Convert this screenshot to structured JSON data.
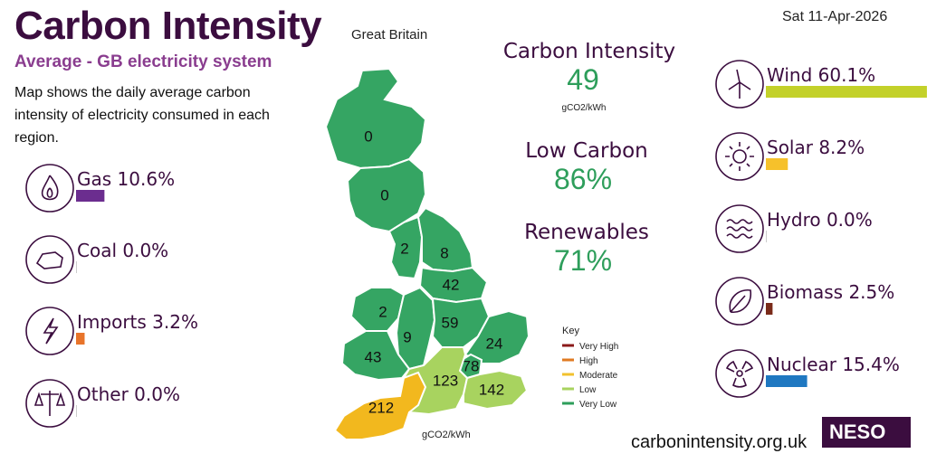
{
  "header": {
    "title": "Carbon Intensity",
    "region": "Great Britain",
    "date": "Sat 11-Apr-2026",
    "subtitle": "Average - GB electricity system",
    "description": "Map shows the daily average carbon intensity of electricity consumed in each region."
  },
  "stats": [
    {
      "label": "Carbon Intensity",
      "value": 49,
      "unit": "gCO2/kWh"
    },
    {
      "label": "Low Carbon",
      "value": "86%"
    },
    {
      "label": "Renewables",
      "value": "71%"
    }
  ],
  "fuels": [
    {
      "label": "Gas 10.6%",
      "value": 10.6,
      "color": "#6b2d8f",
      "icon": "gas"
    },
    {
      "label": "Coal 0.0%",
      "value": 0.0,
      "color": "#3b0d3f",
      "icon": "coal"
    },
    {
      "label": "Imports 3.2%",
      "value": 3.2,
      "color": "#e8742a",
      "icon": "imports"
    },
    {
      "label": "Other 0.0%",
      "value": 0.0,
      "color": "#999999",
      "icon": "other"
    },
    {
      "label": "Wind 60.1%",
      "value": 60.1,
      "color": "#c3d12a",
      "icon": "wind"
    },
    {
      "label": "Solar 8.2%",
      "value": 8.2,
      "color": "#f6c12b",
      "icon": "solar"
    },
    {
      "label": "Hydro 0.0%",
      "value": 0.0,
      "color": "#4aa3df",
      "icon": "hydro"
    },
    {
      "label": "Biomass 2.5%",
      "value": 2.5,
      "color": "#7a2b1a",
      "icon": "biomass"
    },
    {
      "label": "Nuclear 15.4%",
      "value": 15.4,
      "color": "#1f78c1",
      "icon": "nuclear"
    }
  ],
  "map": {
    "unit": "gCO2/kWh",
    "key_title": "Key",
    "key": [
      {
        "label": "Very High",
        "color": "#8b1a1a"
      },
      {
        "label": "High",
        "color": "#e07a22"
      },
      {
        "label": "Moderate",
        "color": "#f2c12e"
      },
      {
        "label": "Low",
        "color": "#a8d35f"
      },
      {
        "label": "Very Low",
        "color": "#2e9e5b"
      }
    ],
    "regions": [
      {
        "value": 0,
        "color": "#35a563"
      },
      {
        "value": 0,
        "color": "#35a563"
      },
      {
        "value": 2,
        "color": "#35a563"
      },
      {
        "value": 8,
        "color": "#35a563"
      },
      {
        "value": 42,
        "color": "#35a563"
      },
      {
        "value": 2,
        "color": "#35a563"
      },
      {
        "value": 9,
        "color": "#35a563"
      },
      {
        "value": 59,
        "color": "#35a563"
      },
      {
        "value": 24,
        "color": "#35a563"
      },
      {
        "value": 43,
        "color": "#35a563"
      },
      {
        "value": 78,
        "color": "#35a563"
      },
      {
        "value": 123,
        "color": "#a8d35f"
      },
      {
        "value": 142,
        "color": "#a8d35f"
      },
      {
        "value": 212,
        "color": "#f2b81e"
      }
    ]
  },
  "footer": {
    "url": "carbonintensity.org.uk",
    "logo": "NESO"
  }
}
